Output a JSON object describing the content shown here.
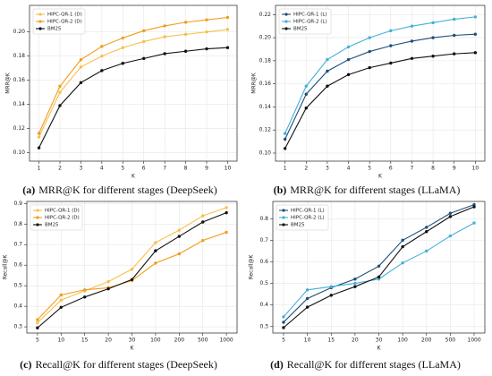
{
  "chart_data": [
    {
      "type": "line",
      "caption_label": "(a)",
      "caption": "MRR@K for different stages (DeepSeek)",
      "xlabel": "K",
      "ylabel": "MRR@K",
      "x": [
        1,
        2,
        3,
        4,
        5,
        6,
        7,
        8,
        9,
        10
      ],
      "xlim": [
        0.55,
        10.45
      ],
      "xticks": [
        1,
        2,
        3,
        4,
        5,
        6,
        7,
        8,
        9,
        10
      ],
      "ylim": [
        0.093,
        0.222
      ],
      "yticks": [
        {
          "value": 0.1,
          "label": "0.10"
        },
        0.12,
        0.14,
        0.16,
        0.18,
        {
          "value": 0.2,
          "label": "0.20"
        }
      ],
      "grid": true,
      "legend": "upper left",
      "series": [
        {
          "name": "HIPC-QR-1 (D)",
          "color": "#f7c04a",
          "values": [
            0.113,
            0.15,
            0.171,
            0.18,
            0.187,
            0.192,
            0.196,
            0.198,
            0.2,
            0.202
          ]
        },
        {
          "name": "HIPC-QR-2 (D)",
          "color": "#f39c1e",
          "values": [
            0.116,
            0.155,
            0.177,
            0.188,
            0.195,
            0.201,
            0.205,
            0.208,
            0.21,
            0.212
          ]
        },
        {
          "name": "BM25",
          "color": "#111111",
          "values": [
            0.104,
            0.139,
            0.158,
            0.168,
            0.174,
            0.178,
            0.182,
            0.184,
            0.186,
            0.187
          ]
        }
      ]
    },
    {
      "type": "line",
      "caption_label": "(b)",
      "caption": "MRR@K for different stages (LLaMA)",
      "xlabel": "K",
      "ylabel": "MRR@K",
      "x": [
        1,
        2,
        3,
        4,
        5,
        6,
        7,
        8,
        9,
        10
      ],
      "xlim": [
        0.55,
        10.45
      ],
      "xticks": [
        1,
        2,
        3,
        4,
        5,
        6,
        7,
        8,
        9,
        10
      ],
      "ylim": [
        0.093,
        0.228
      ],
      "yticks": [
        {
          "value": 0.1,
          "label": "0.10"
        },
        0.12,
        0.14,
        0.16,
        0.18,
        {
          "value": 0.2,
          "label": "0.20"
        },
        0.22
      ],
      "grid": true,
      "legend": "upper left",
      "series": [
        {
          "name": "HIPC-QR-1 (L)",
          "color": "#1f4e79",
          "values": [
            0.112,
            0.151,
            0.171,
            0.181,
            0.188,
            0.193,
            0.197,
            0.2,
            0.202,
            0.203
          ]
        },
        {
          "name": "HIPC-QR-2 (L)",
          "color": "#45b0d6",
          "values": [
            0.117,
            0.158,
            0.181,
            0.192,
            0.2,
            0.206,
            0.21,
            0.213,
            0.216,
            0.218
          ]
        },
        {
          "name": "BM25",
          "color": "#111111",
          "values": [
            0.104,
            0.139,
            0.158,
            0.168,
            0.174,
            0.178,
            0.182,
            0.184,
            0.186,
            0.187
          ]
        }
      ]
    },
    {
      "type": "line",
      "caption_label": "(c)",
      "caption": "Recall@K for different stages (DeepSeek)",
      "xlabel": "K",
      "ylabel": "Recall@K",
      "categories": [
        "5",
        "10",
        "15",
        "20",
        "30",
        "100",
        "200",
        "500",
        "1000"
      ],
      "ylim": [
        0.27,
        0.91
      ],
      "yticks": [
        0.3,
        0.4,
        0.5,
        0.6,
        0.7,
        0.8,
        0.9
      ],
      "grid": true,
      "legend": "upper left",
      "series": [
        {
          "name": "HIPC-QR-1 (D)",
          "color": "#f7c04a",
          "values": [
            0.32,
            0.43,
            0.475,
            0.52,
            0.58,
            0.71,
            0.77,
            0.84,
            0.88
          ]
        },
        {
          "name": "HIPC-QR-2 (D)",
          "color": "#f39c1e",
          "values": [
            0.335,
            0.455,
            0.48,
            0.49,
            0.525,
            0.61,
            0.655,
            0.72,
            0.76
          ]
        },
        {
          "name": "BM25",
          "color": "#111111",
          "values": [
            0.295,
            0.395,
            0.445,
            0.485,
            0.53,
            0.67,
            0.74,
            0.81,
            0.855
          ]
        }
      ]
    },
    {
      "type": "line",
      "caption_label": "(d)",
      "caption": "Recall@K for different stages (LLaMA)",
      "xlabel": "K",
      "ylabel": "Recall@K",
      "categories": [
        "5",
        "10",
        "15",
        "20",
        "30",
        "100",
        "200",
        "500",
        "1000"
      ],
      "ylim": [
        0.27,
        0.88
      ],
      "yticks": [
        0.3,
        0.4,
        0.5,
        0.6,
        0.7,
        0.8
      ],
      "grid": true,
      "legend": "upper left",
      "series": [
        {
          "name": "HIPC-QR-1 (L)",
          "color": "#1f4e79",
          "values": [
            0.32,
            0.43,
            0.48,
            0.52,
            0.58,
            0.7,
            0.76,
            0.825,
            0.865
          ]
        },
        {
          "name": "HIPC-QR-2 (L)",
          "color": "#45b0d6",
          "values": [
            0.345,
            0.47,
            0.485,
            0.5,
            0.52,
            0.595,
            0.65,
            0.72,
            0.78
          ]
        },
        {
          "name": "BM25",
          "color": "#111111",
          "values": [
            0.295,
            0.39,
            0.445,
            0.485,
            0.53,
            0.67,
            0.74,
            0.81,
            0.855
          ]
        }
      ]
    }
  ]
}
